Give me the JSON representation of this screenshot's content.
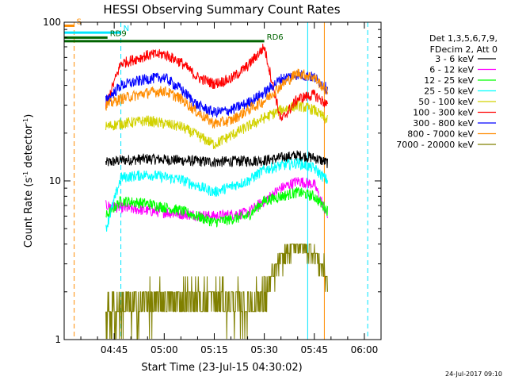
{
  "chart_data": {
    "type": "line",
    "title": "HESSI Observing Summary Count Rates",
    "xlabel": "Start Time (23-Jul-15 04:30:02)",
    "ylabel_main": "Count Rate (s",
    "ylabel_sup": "-1",
    "ylabel_rest": " detector",
    "ylabel_sup2": "-1",
    "ylabel_end": ")",
    "yscale": "log",
    "ylim": [
      1,
      100
    ],
    "xlim_minutes": [
      0,
      95
    ],
    "x_ticks": [
      {
        "label": "04:45",
        "minute": 15
      },
      {
        "label": "05:00",
        "minute": 30
      },
      {
        "label": "05:15",
        "minute": 45
      },
      {
        "label": "05:30",
        "minute": 60
      },
      {
        "label": "05:45",
        "minute": 75
      },
      {
        "label": "06:00",
        "minute": 90
      }
    ],
    "y_ticks": [
      {
        "label": "1",
        "value": 1
      },
      {
        "label": "10",
        "value": 10
      },
      {
        "label": "100",
        "value": 100
      }
    ],
    "legend_header": [
      "Det 1,3,5,6,7,9,",
      "FDecim 2, Att 0"
    ],
    "legend_placement": "right",
    "footer_date": "24-Jul-2017 09:10",
    "flags": [
      {
        "label": "S",
        "color": "#ff8c00",
        "start_min": 0,
        "end_min": 3,
        "level": 95
      },
      {
        "label": "N",
        "color": "#00e5ff",
        "start_min": 0,
        "end_min": 17,
        "level": 86
      },
      {
        "label": "RD9",
        "color": "#006400",
        "start_min": 0,
        "end_min": 13,
        "level": 80
      },
      {
        "label": "RD6",
        "color": "#006400",
        "start_min": 0,
        "end_min": 60,
        "level": 76
      }
    ],
    "vertical_markers": [
      {
        "minute": 3,
        "color": "#ff8c00",
        "style": "dashed"
      },
      {
        "minute": 17,
        "color": "#00e5ff",
        "style": "dashed"
      },
      {
        "minute": 73,
        "color": "#00e5ff",
        "style": "solid"
      },
      {
        "minute": 78,
        "color": "#ff8c00",
        "style": "solid"
      },
      {
        "minute": 91,
        "color": "#00e5ff",
        "style": "dashed"
      }
    ],
    "series": [
      {
        "name": "3 - 6 keV",
        "color": "#000000",
        "x": [
          12.5,
          17,
          25,
          35,
          45,
          55,
          60,
          65,
          70,
          75,
          79
        ],
        "y": [
          13,
          13.5,
          13.8,
          13.5,
          13.2,
          13.4,
          13.5,
          14,
          14.5,
          14,
          13
        ]
      },
      {
        "name": "6 - 12 keV",
        "color": "#ff00ff",
        "x": [
          12.5,
          17,
          25,
          35,
          45,
          55,
          60,
          65,
          70,
          75,
          79
        ],
        "y": [
          7,
          6.8,
          6.5,
          6.2,
          6.0,
          6.3,
          7.5,
          9,
          10,
          9.5,
          6
        ]
      },
      {
        "name": "12 - 25 keV",
        "color": "#00ff00",
        "x": [
          12.5,
          17,
          25,
          35,
          45,
          55,
          60,
          65,
          70,
          75,
          79
        ],
        "y": [
          6,
          7.5,
          7.2,
          6.5,
          5.5,
          6.0,
          7.5,
          8.0,
          8.5,
          8.0,
          6.5
        ]
      },
      {
        "name": "25 - 50 keV",
        "color": "#00ffff",
        "x": [
          12.5,
          17,
          25,
          35,
          45,
          55,
          60,
          65,
          70,
          75,
          79
        ],
        "y": [
          5,
          10.5,
          11,
          10.2,
          8.5,
          10,
          11.8,
          12.5,
          13,
          12,
          10
        ]
      },
      {
        "name": "50 - 100 keV",
        "color": "#d2d200",
        "x": [
          12.5,
          17,
          25,
          35,
          45,
          55,
          60,
          65,
          70,
          75,
          79
        ],
        "y": [
          22,
          23,
          24,
          22,
          17,
          22,
          25,
          28,
          30,
          28,
          24
        ]
      },
      {
        "name": "100 - 300 keV",
        "color": "#ff0000",
        "x": [
          12.5,
          17,
          25,
          30,
          35,
          40,
          45,
          50,
          55,
          60,
          65,
          70,
          75,
          79
        ],
        "y": [
          30,
          55,
          62,
          63,
          56,
          45,
          41,
          44,
          53,
          70,
          24,
          33,
          35,
          30
        ]
      },
      {
        "name": "300 - 800 keV",
        "color": "#0000ff",
        "x": [
          12.5,
          17,
          25,
          30,
          35,
          40,
          45,
          50,
          55,
          60,
          65,
          70,
          75,
          79
        ],
        "y": [
          32,
          40,
          44,
          45,
          38,
          30,
          27,
          28,
          31,
          36,
          44,
          47,
          45,
          38
        ]
      },
      {
        "name": "800 - 7000 keV",
        "color": "#ff8c00",
        "x": [
          12.5,
          17,
          25,
          30,
          35,
          40,
          45,
          50,
          55,
          60,
          65,
          70,
          75,
          79
        ],
        "y": [
          30,
          33,
          36,
          37,
          33,
          27,
          23,
          24,
          28,
          32,
          40,
          48,
          45,
          36
        ]
      },
      {
        "name": "7000 - 20000 keV",
        "color": "#808000",
        "x": [
          12.5,
          17,
          25,
          35,
          45,
          55,
          60,
          65,
          70,
          75,
          79
        ],
        "y": [
          1.5,
          1.6,
          1.7,
          1.8,
          1.8,
          1.7,
          1.9,
          3.2,
          4.0,
          3.5,
          2.5
        ]
      }
    ]
  }
}
